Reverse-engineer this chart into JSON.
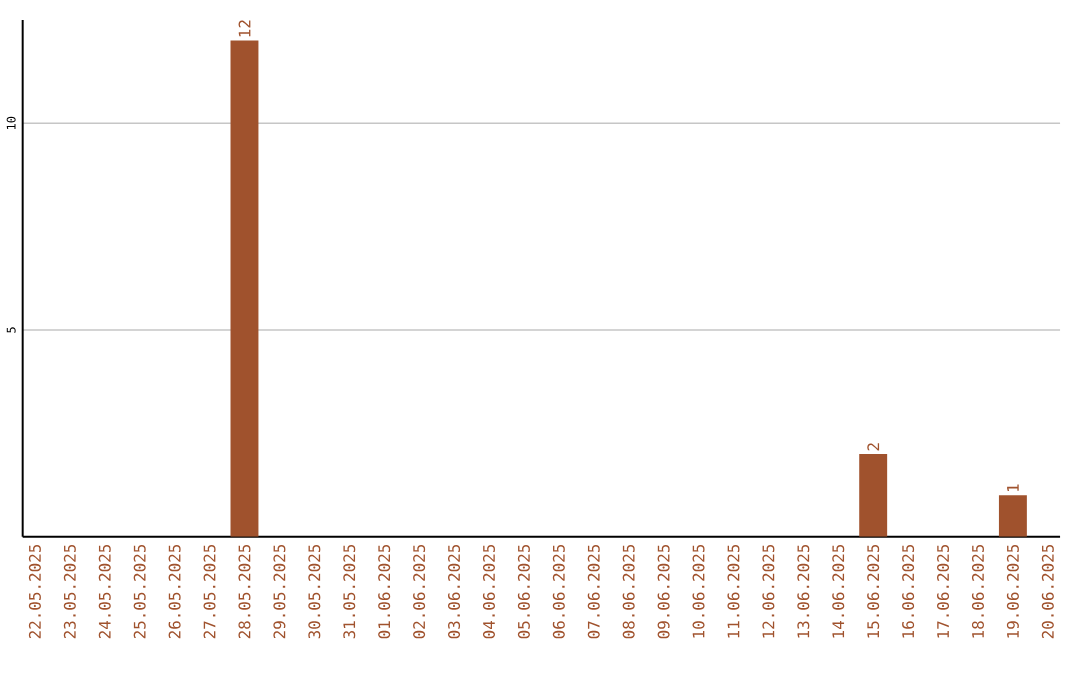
{
  "chart_data": {
    "type": "bar",
    "categories": [
      "22.05.2025",
      "23.05.2025",
      "24.05.2025",
      "25.05.2025",
      "26.05.2025",
      "27.05.2025",
      "28.05.2025",
      "29.05.2025",
      "30.05.2025",
      "31.05.2025",
      "01.06.2025",
      "02.06.2025",
      "03.06.2025",
      "04.06.2025",
      "05.06.2025",
      "06.06.2025",
      "07.06.2025",
      "08.06.2025",
      "09.06.2025",
      "10.06.2025",
      "11.06.2025",
      "12.06.2025",
      "13.06.2025",
      "14.06.2025",
      "15.06.2025",
      "16.06.2025",
      "17.06.2025",
      "18.06.2025",
      "19.06.2025",
      "20.06.2025"
    ],
    "values": [
      0,
      0,
      0,
      0,
      0,
      0,
      12,
      0,
      0,
      0,
      0,
      0,
      0,
      0,
      0,
      0,
      0,
      0,
      0,
      0,
      0,
      0,
      0,
      0,
      2,
      0,
      0,
      0,
      1,
      0
    ],
    "value_labels": [
      null,
      null,
      null,
      null,
      null,
      null,
      "12",
      null,
      null,
      null,
      null,
      null,
      null,
      null,
      null,
      null,
      null,
      null,
      null,
      null,
      null,
      null,
      null,
      null,
      "2",
      null,
      null,
      null,
      "1",
      null
    ],
    "color": "#a0522d",
    "ylim": [
      0,
      12.5
    ],
    "yticks": [
      5,
      10
    ],
    "grid": "y"
  }
}
